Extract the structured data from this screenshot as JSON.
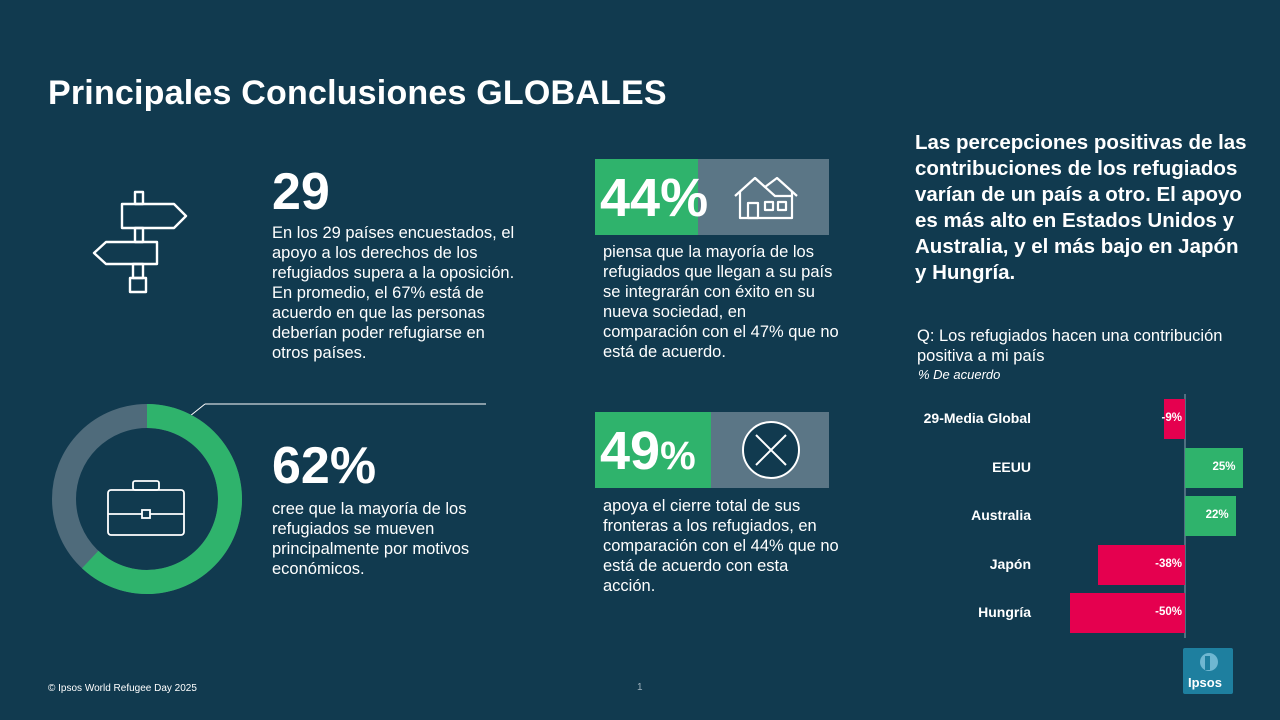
{
  "title": "Principales Conclusiones GLOBALES",
  "block1": {
    "number": "29",
    "text": "En los 29 países encuestados, el apoyo a los derechos de los refugiados supera a la oposición. En promedio, el 67% está de acuerdo en que las personas deberían poder refugiarse en otros países."
  },
  "block2": {
    "number": "62%",
    "text": "cree que la mayoría de los refugiados se mueven principalmente por motivos económicos.",
    "donut_fraction": 0.62
  },
  "block3": {
    "number": "44%",
    "text": "piensa que la mayoría de los refugiados que llegan a su país se integrarán con éxito en su nueva sociedad, en comparación con el 47% que no está de acuerdo."
  },
  "block4": {
    "number": "49",
    "number_suffix": "%",
    "text": "apoya el cierre total de sus fronteras a los refugiados, en comparación con el 44% que no está de acuerdo con esta acción."
  },
  "right": {
    "heading": "Las percepciones positivas de las contribuciones de los refugiados varían de un país a otro. El apoyo es más alto en Estados Unidos y Australia, y el más bajo en Japón y Hungría.",
    "question": "Q: Los refugiados hacen una contribución positiva a mi país",
    "subtitle": "% De acuerdo"
  },
  "chart_data": {
    "type": "bar",
    "orientation": "horizontal",
    "categories": [
      "29-Media Global",
      "EEUU",
      "Australia",
      "Japón",
      "Hungría"
    ],
    "values": [
      -9,
      25,
      22,
      -38,
      -50
    ],
    "value_labels": [
      "-9%",
      "25%",
      "22%",
      "-38%",
      "-50%"
    ],
    "title": "",
    "xlabel": "",
    "ylabel": "",
    "xlim": [
      -50,
      25
    ],
    "grid": false,
    "legend": "none",
    "colors": {
      "positive": "#2fb36c",
      "negative": "#e5004f"
    }
  },
  "footer": {
    "copyright": "© Ipsos World Refugee Day 2025",
    "page": "1"
  },
  "logo": {
    "text": "Ipsos"
  },
  "colors": {
    "background": "#113a4f",
    "accent_green": "#2fb36c",
    "accent_red": "#e5004f",
    "box_gray": "#5b7686"
  }
}
